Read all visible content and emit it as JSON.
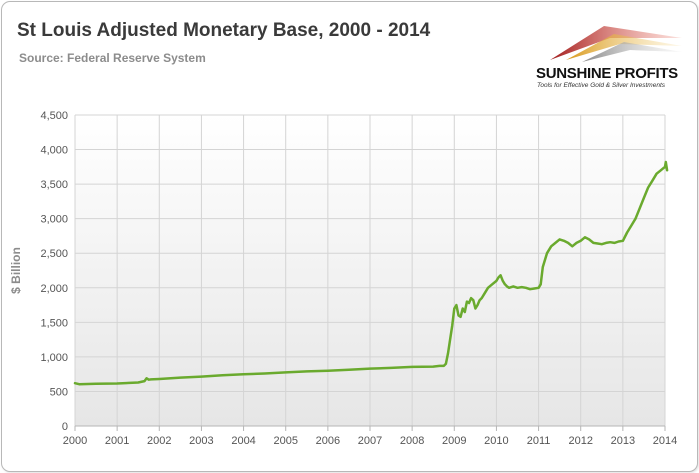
{
  "title": "St Louis Adjusted Monetary Base, 2000 - 2014",
  "subtitle": "Source: Federal Reserve System",
  "logo": {
    "name": "SUNSHINE PROFITS",
    "tagline": "Tools for Effective Gold & Silver Investments"
  },
  "colors": {
    "line": "#6aaa2e",
    "plot_bg_top": "#ffffff",
    "plot_bg_bottom": "#e6e6e6",
    "grid": "#d4d4d4",
    "axis_text": "#555555"
  },
  "chart_data": {
    "type": "line",
    "title": "St Louis Adjusted Monetary Base, 2000 - 2014",
    "subtitle": "Source: Federal Reserve System",
    "xlabel": "",
    "ylabel": "$ Billion",
    "xlim": [
      2000,
      2014
    ],
    "ylim": [
      0,
      4500
    ],
    "x_ticks": [
      "2000",
      "2001",
      "2002",
      "2003",
      "2004",
      "2005",
      "2006",
      "2007",
      "2008",
      "2009",
      "2010",
      "2011",
      "2012",
      "2013",
      "2014"
    ],
    "y_ticks": [
      "0",
      "500",
      "1,000",
      "1,500",
      "2,000",
      "2,500",
      "3,000",
      "3,500",
      "4,000",
      "4,500"
    ],
    "y_tick_values": [
      0,
      500,
      1000,
      1500,
      2000,
      2500,
      3000,
      3500,
      4000,
      4500
    ],
    "grid": true,
    "legend": "none",
    "series": [
      {
        "x": [
          2000.0,
          2000.1,
          2000.5,
          2001.0,
          2001.5,
          2001.65,
          2001.7,
          2001.75,
          2001.8,
          2002.0,
          2002.5,
          2003.0,
          2003.5,
          2004.0,
          2004.5,
          2005.0,
          2005.5,
          2006.0,
          2006.5,
          2007.0,
          2007.5,
          2008.0,
          2008.5,
          2008.65,
          2008.75,
          2008.8,
          2008.85,
          2008.9,
          2008.95,
          2009.0,
          2009.05,
          2009.1,
          2009.15,
          2009.2,
          2009.25,
          2009.3,
          2009.35,
          2009.4,
          2009.45,
          2009.5,
          2009.55,
          2009.6,
          2009.65,
          2009.7,
          2009.8,
          2009.9,
          2010.0,
          2010.05,
          2010.1,
          2010.15,
          2010.2,
          2010.25,
          2010.3,
          2010.4,
          2010.5,
          2010.6,
          2010.7,
          2010.8,
          2010.9,
          2011.0,
          2011.05,
          2011.1,
          2011.15,
          2011.2,
          2011.3,
          2011.4,
          2011.5,
          2011.6,
          2011.7,
          2011.8,
          2011.9,
          2012.0,
          2012.1,
          2012.2,
          2012.3,
          2012.4,
          2012.5,
          2012.6,
          2012.7,
          2012.8,
          2012.9,
          2013.0,
          2013.1,
          2013.2,
          2013.3,
          2013.4,
          2013.5,
          2013.6,
          2013.7,
          2013.8,
          2013.9,
          2014.0,
          2014.02,
          2014.05
        ],
        "y": [
          620,
          605,
          610,
          615,
          630,
          650,
          690,
          670,
          675,
          680,
          700,
          715,
          735,
          750,
          760,
          775,
          790,
          800,
          815,
          830,
          840,
          855,
          860,
          870,
          870,
          900,
          1050,
          1250,
          1450,
          1700,
          1750,
          1600,
          1580,
          1700,
          1650,
          1800,
          1780,
          1850,
          1820,
          1700,
          1750,
          1820,
          1850,
          1900,
          2000,
          2050,
          2100,
          2150,
          2180,
          2100,
          2050,
          2020,
          2000,
          2020,
          2000,
          2010,
          2000,
          1980,
          1990,
          2000,
          2050,
          2300,
          2400,
          2500,
          2600,
          2650,
          2700,
          2680,
          2650,
          2600,
          2650,
          2680,
          2730,
          2700,
          2650,
          2640,
          2630,
          2650,
          2660,
          2650,
          2670,
          2680,
          2800,
          2900,
          3000,
          3150,
          3300,
          3450,
          3550,
          3650,
          3700,
          3750,
          3820,
          3700
        ]
      }
    ]
  }
}
